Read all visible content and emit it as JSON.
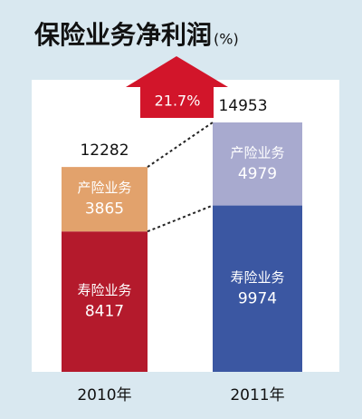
{
  "chart_data": {
    "type": "stacked_bar",
    "title": "保险业务净利润",
    "unit": "(%)",
    "categories": [
      "2010年",
      "2011年"
    ],
    "series": [
      {
        "name": "寿险业务",
        "colors": [
          "#b41a2c",
          "#3b57a2"
        ],
        "values": [
          8417,
          9974
        ]
      },
      {
        "name": "产险业务",
        "colors": [
          "#e2a26c",
          "#a8aacf"
        ],
        "values": [
          3865,
          4979
        ]
      }
    ],
    "totals": [
      12282,
      14953
    ],
    "annotation": "21.7%"
  }
}
